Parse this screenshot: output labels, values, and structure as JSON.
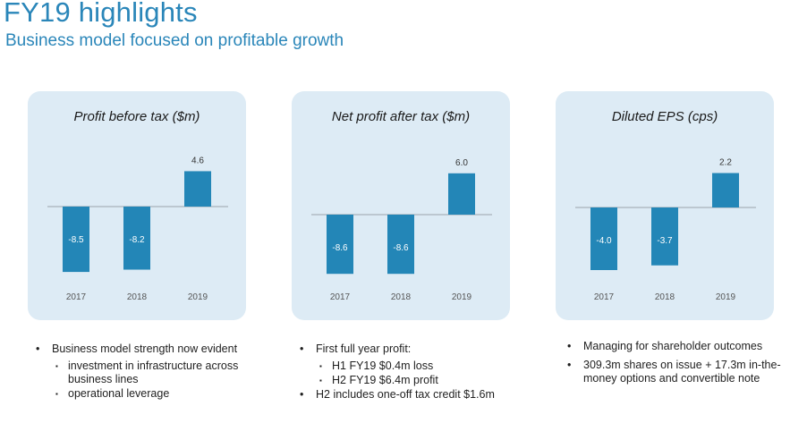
{
  "header": {
    "title": "FY19 highlights",
    "subtitle": "Business model focused on profitable growth"
  },
  "colors": {
    "bar": "#2386b7",
    "panel": "#ddebf5",
    "title": "#2a86b9"
  },
  "chart_data": [
    {
      "type": "bar",
      "title": "Profit before tax ($m)",
      "categories": [
        "2017",
        "2018",
        "2019"
      ],
      "values": [
        -8.5,
        -8.2,
        4.6
      ],
      "labels": [
        "-8.5",
        "-8.2",
        "4.6"
      ]
    },
    {
      "type": "bar",
      "title": "Net profit after tax ($m)",
      "categories": [
        "2017",
        "2018",
        "2019"
      ],
      "values": [
        -8.6,
        -8.6,
        6.0
      ],
      "labels": [
        "-8.6",
        "-8.6",
        "6.0"
      ]
    },
    {
      "type": "bar",
      "title": "Diluted EPS (cps)",
      "categories": [
        "2017",
        "2018",
        "2019"
      ],
      "values": [
        -4.0,
        -3.7,
        2.2
      ],
      "labels": [
        "-4.0",
        "-3.7",
        "2.2"
      ]
    }
  ],
  "notes": {
    "col1": {
      "bullet": "Business model strength now evident",
      "sub": [
        "investment in infrastructure across business lines",
        "operational leverage"
      ]
    },
    "col2": {
      "bullet": "First full year profit:",
      "sub": [
        "H1 FY19 $0.4m loss",
        "H2 FY19 $6.4m profit"
      ],
      "bullet2": "H2 includes one-off tax credit $1.6m"
    },
    "col3": {
      "bullet": "Managing for shareholder outcomes",
      "bullet2": "309.3m shares on issue + 17.3m in-the-money options and convertible note"
    }
  }
}
